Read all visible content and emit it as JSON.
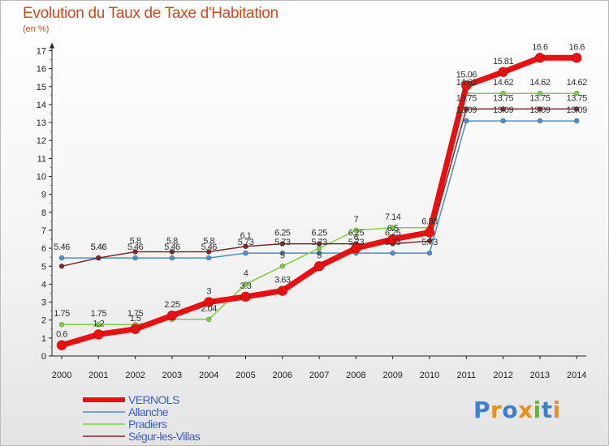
{
  "title": "Evolution du Taux de Taxe d'Habitation",
  "subtitle": "(en %)",
  "logo": "Proxiti",
  "chart_data": {
    "type": "line",
    "title": "Evolution du Taux de Taxe d'Habitation",
    "ylabel": "(en %)",
    "xlabel": "",
    "ylim": [
      0,
      17
    ],
    "grid": false,
    "legend": "bottom-left",
    "x": [
      "2000",
      "2001",
      "2002",
      "2003",
      "2004",
      "2005",
      "2006",
      "2007",
      "2008",
      "2009",
      "2010",
      "2011",
      "2012",
      "2013",
      "2014"
    ],
    "yticks": [
      "0",
      "1",
      "2",
      "3",
      "4",
      "5",
      "6",
      "7",
      "8",
      "9",
      "10",
      "11",
      "12",
      "13",
      "14",
      "15",
      "16",
      "17"
    ],
    "series": [
      {
        "name": "Allanche",
        "color": "#4a8fc8",
        "width": 1.5,
        "marker": 3,
        "values": [
          5.46,
          5.46,
          5.46,
          5.46,
          5.46,
          5.73,
          5.73,
          5.73,
          5.73,
          5.73,
          5.73,
          13.09,
          13.09,
          13.09,
          13.09
        ],
        "labels": [
          "5.46",
          "5.46",
          "5.46",
          "5.46",
          "5.46",
          "5.73",
          "5.73",
          "5.73",
          "5.73",
          "5.73",
          "5.73",
          "13.09",
          "13.09",
          "13.09",
          "13.09"
        ]
      },
      {
        "name": "Pradiers",
        "color": "#7ccf3e",
        "width": 1.5,
        "marker": 3,
        "values": [
          1.75,
          1.75,
          1.75,
          2.04,
          2.04,
          4,
          5,
          6,
          7,
          7.14,
          7.14,
          14.62,
          14.62,
          14.62,
          14.62
        ],
        "labels": [
          "1.75",
          "1.75",
          "1.75",
          "",
          "2.04",
          "4",
          "5",
          "",
          "7",
          "7.14",
          "",
          "14.62",
          "14.62",
          "14.62",
          "14.62"
        ]
      },
      {
        "name": "Ségur-les-Villas",
        "color": "#7a2a2a",
        "width": 1.5,
        "marker": 3,
        "values": [
          5,
          5.46,
          5.8,
          5.8,
          5.8,
          6.1,
          6.25,
          6.25,
          6.25,
          6.25,
          6.4,
          13.75,
          13.75,
          13.75,
          13.75
        ],
        "labels": [
          "",
          "5.46",
          "5.8",
          "5.8",
          "5.8",
          "6.1",
          "6.25",
          "6.25",
          "6.25",
          "6.25",
          "",
          "13.75",
          "13.75",
          "13.75",
          "13.75"
        ]
      },
      {
        "name": "VERNOLS",
        "color": "#e81010",
        "width": 7,
        "marker": 6,
        "values": [
          0.6,
          1.2,
          1.5,
          2.25,
          3,
          3.3,
          3.63,
          5,
          6,
          6.5,
          6.88,
          15.06,
          15.81,
          16.6,
          16.6
        ],
        "labels": [
          "0.6",
          "1.2",
          "1.5",
          "2.25",
          "3",
          "3.3",
          "3.63",
          "5",
          "6",
          "6.5",
          "6.88",
          "15.06",
          "15.81",
          "16.6",
          "16.6"
        ]
      }
    ],
    "legend_order": [
      "VERNOLS",
      "Allanche",
      "Pradiers",
      "Ségur-les-Villas"
    ]
  }
}
